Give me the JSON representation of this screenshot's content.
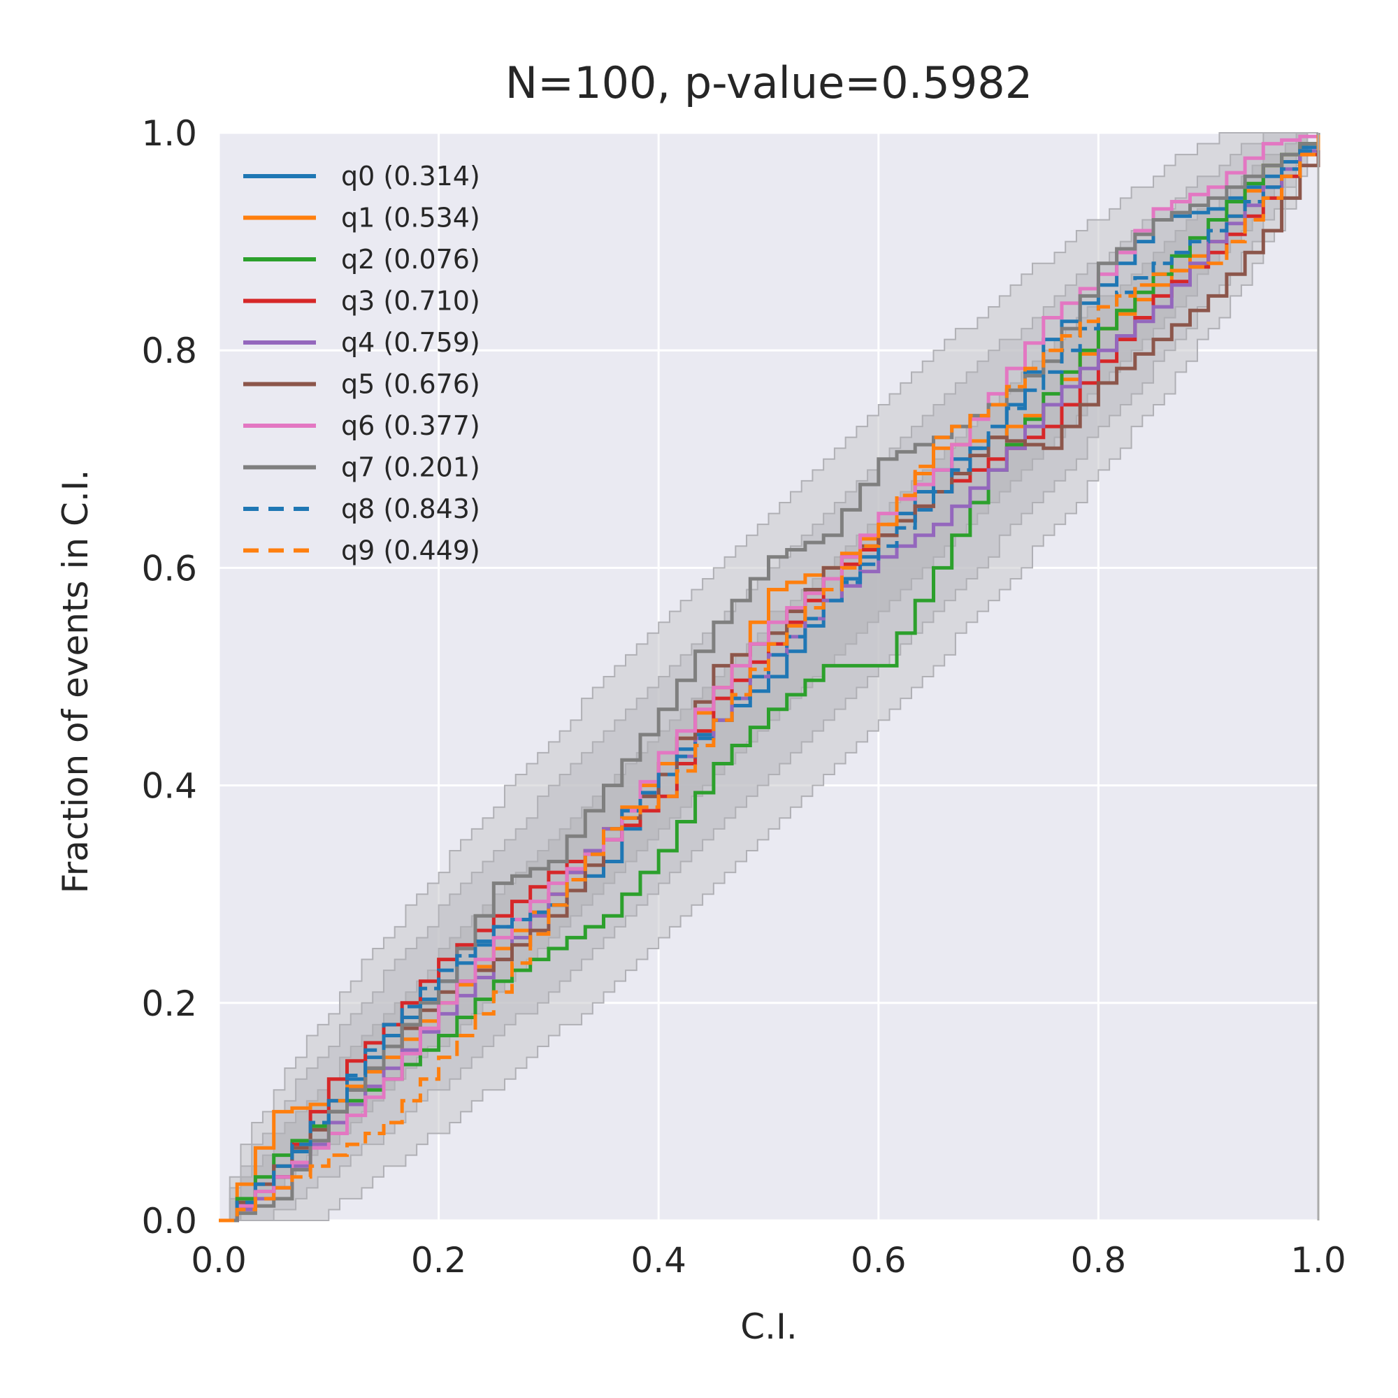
{
  "chart_data": {
    "type": "line",
    "title": "N=100, p-value=0.5982",
    "xlabel": "C.I.",
    "ylabel": "Fraction of events in C.I.",
    "xlim": [
      0,
      1
    ],
    "ylim": [
      0,
      1
    ],
    "xticks": [
      "0.0",
      "0.2",
      "0.4",
      "0.6",
      "0.8",
      "1.0"
    ],
    "yticks": [
      "0.0",
      "0.2",
      "0.4",
      "0.6",
      "0.8",
      "1.0"
    ],
    "grid": true,
    "legend_position": "upper-left",
    "background_color": "#eaeaf2",
    "confidence_bands": [
      {
        "sigma": 3,
        "color": "#c8c8cc"
      },
      {
        "sigma": 2,
        "color": "#bebec3"
      },
      {
        "sigma": 1,
        "color": "#b3b3b8"
      }
    ],
    "series": [
      {
        "name": "q0 (0.314)",
        "color": "#1f77b4",
        "style": "solid",
        "points": [
          [
            0,
            0
          ],
          [
            0.05,
            0.04
          ],
          [
            0.1,
            0.11
          ],
          [
            0.15,
            0.17
          ],
          [
            0.2,
            0.22
          ],
          [
            0.25,
            0.27
          ],
          [
            0.3,
            0.29
          ],
          [
            0.35,
            0.33
          ],
          [
            0.4,
            0.42
          ],
          [
            0.45,
            0.46
          ],
          [
            0.5,
            0.5
          ],
          [
            0.55,
            0.57
          ],
          [
            0.6,
            0.63
          ],
          [
            0.65,
            0.69
          ],
          [
            0.7,
            0.72
          ],
          [
            0.75,
            0.81
          ],
          [
            0.8,
            0.86
          ],
          [
            0.85,
            0.92
          ],
          [
            0.9,
            0.93
          ],
          [
            0.95,
            0.96
          ],
          [
            1,
            1
          ]
        ]
      },
      {
        "name": "q1 (0.534)",
        "color": "#ff7f0e",
        "style": "solid",
        "points": [
          [
            0,
            0
          ],
          [
            0.05,
            0.1
          ],
          [
            0.1,
            0.11
          ],
          [
            0.15,
            0.15
          ],
          [
            0.2,
            0.2
          ],
          [
            0.25,
            0.25
          ],
          [
            0.3,
            0.3
          ],
          [
            0.35,
            0.36
          ],
          [
            0.4,
            0.42
          ],
          [
            0.45,
            0.49
          ],
          [
            0.5,
            0.58
          ],
          [
            0.55,
            0.6
          ],
          [
            0.6,
            0.64
          ],
          [
            0.65,
            0.71
          ],
          [
            0.7,
            0.72
          ],
          [
            0.75,
            0.75
          ],
          [
            0.8,
            0.82
          ],
          [
            0.85,
            0.86
          ],
          [
            0.9,
            0.9
          ],
          [
            0.95,
            0.97
          ],
          [
            1,
            1
          ]
        ]
      },
      {
        "name": "q2 (0.076)",
        "color": "#2ca02c",
        "style": "solid",
        "points": [
          [
            0,
            0
          ],
          [
            0.05,
            0.06
          ],
          [
            0.1,
            0.1
          ],
          [
            0.15,
            0.13
          ],
          [
            0.2,
            0.17
          ],
          [
            0.25,
            0.22
          ],
          [
            0.3,
            0.25
          ],
          [
            0.35,
            0.28
          ],
          [
            0.4,
            0.34
          ],
          [
            0.45,
            0.42
          ],
          [
            0.5,
            0.47
          ],
          [
            0.55,
            0.51
          ],
          [
            0.6,
            0.51
          ],
          [
            0.65,
            0.6
          ],
          [
            0.7,
            0.69
          ],
          [
            0.75,
            0.76
          ],
          [
            0.8,
            0.82
          ],
          [
            0.85,
            0.87
          ],
          [
            0.9,
            0.92
          ],
          [
            0.95,
            0.97
          ],
          [
            1,
            1
          ]
        ]
      },
      {
        "name": "q3 (0.710)",
        "color": "#d62728",
        "style": "solid",
        "points": [
          [
            0,
            0
          ],
          [
            0.05,
            0.04
          ],
          [
            0.1,
            0.13
          ],
          [
            0.15,
            0.18
          ],
          [
            0.2,
            0.24
          ],
          [
            0.25,
            0.28
          ],
          [
            0.3,
            0.32
          ],
          [
            0.35,
            0.35
          ],
          [
            0.4,
            0.39
          ],
          [
            0.45,
            0.48
          ],
          [
            0.5,
            0.53
          ],
          [
            0.55,
            0.59
          ],
          [
            0.6,
            0.63
          ],
          [
            0.65,
            0.67
          ],
          [
            0.7,
            0.7
          ],
          [
            0.75,
            0.73
          ],
          [
            0.8,
            0.79
          ],
          [
            0.85,
            0.85
          ],
          [
            0.9,
            0.89
          ],
          [
            0.95,
            0.94
          ],
          [
            1,
            1
          ]
        ]
      },
      {
        "name": "q4 (0.759)",
        "color": "#9467bd",
        "style": "solid",
        "points": [
          [
            0,
            0
          ],
          [
            0.05,
            0.03
          ],
          [
            0.1,
            0.09
          ],
          [
            0.15,
            0.14
          ],
          [
            0.2,
            0.19
          ],
          [
            0.25,
            0.24
          ],
          [
            0.3,
            0.3
          ],
          [
            0.35,
            0.36
          ],
          [
            0.4,
            0.41
          ],
          [
            0.45,
            0.46
          ],
          [
            0.5,
            0.52
          ],
          [
            0.55,
            0.57
          ],
          [
            0.6,
            0.61
          ],
          [
            0.65,
            0.64
          ],
          [
            0.7,
            0.69
          ],
          [
            0.75,
            0.75
          ],
          [
            0.8,
            0.8
          ],
          [
            0.85,
            0.84
          ],
          [
            0.9,
            0.9
          ],
          [
            0.95,
            0.95
          ],
          [
            1,
            1
          ]
        ]
      },
      {
        "name": "q5 (0.676)",
        "color": "#8c564b",
        "style": "solid",
        "points": [
          [
            0,
            0
          ],
          [
            0.05,
            0.05
          ],
          [
            0.1,
            0.1
          ],
          [
            0.15,
            0.16
          ],
          [
            0.2,
            0.21
          ],
          [
            0.25,
            0.24
          ],
          [
            0.3,
            0.28
          ],
          [
            0.35,
            0.35
          ],
          [
            0.4,
            0.41
          ],
          [
            0.45,
            0.51
          ],
          [
            0.5,
            0.54
          ],
          [
            0.55,
            0.6
          ],
          [
            0.6,
            0.63
          ],
          [
            0.65,
            0.67
          ],
          [
            0.7,
            0.72
          ],
          [
            0.75,
            0.71
          ],
          [
            0.8,
            0.77
          ],
          [
            0.85,
            0.81
          ],
          [
            0.9,
            0.85
          ],
          [
            0.95,
            0.91
          ],
          [
            1,
            1
          ]
        ]
      },
      {
        "name": "q6 (0.377)",
        "color": "#e377c2",
        "style": "solid",
        "points": [
          [
            0,
            0
          ],
          [
            0.05,
            0.04
          ],
          [
            0.1,
            0.08
          ],
          [
            0.15,
            0.13
          ],
          [
            0.2,
            0.2
          ],
          [
            0.25,
            0.26
          ],
          [
            0.3,
            0.31
          ],
          [
            0.35,
            0.35
          ],
          [
            0.4,
            0.43
          ],
          [
            0.45,
            0.49
          ],
          [
            0.5,
            0.55
          ],
          [
            0.55,
            0.59
          ],
          [
            0.6,
            0.65
          ],
          [
            0.65,
            0.69
          ],
          [
            0.7,
            0.76
          ],
          [
            0.75,
            0.83
          ],
          [
            0.8,
            0.87
          ],
          [
            0.85,
            0.93
          ],
          [
            0.9,
            0.95
          ],
          [
            0.95,
            0.99
          ],
          [
            1,
            1
          ]
        ]
      },
      {
        "name": "q7 (0.201)",
        "color": "#7f7f7f",
        "style": "solid",
        "points": [
          [
            0,
            0
          ],
          [
            0.05,
            0.02
          ],
          [
            0.1,
            0.1
          ],
          [
            0.15,
            0.16
          ],
          [
            0.2,
            0.22
          ],
          [
            0.25,
            0.31
          ],
          [
            0.3,
            0.33
          ],
          [
            0.35,
            0.4
          ],
          [
            0.4,
            0.47
          ],
          [
            0.45,
            0.55
          ],
          [
            0.5,
            0.61
          ],
          [
            0.55,
            0.63
          ],
          [
            0.6,
            0.7
          ],
          [
            0.65,
            0.72
          ],
          [
            0.7,
            0.75
          ],
          [
            0.75,
            0.79
          ],
          [
            0.8,
            0.88
          ],
          [
            0.85,
            0.92
          ],
          [
            0.9,
            0.94
          ],
          [
            0.95,
            0.97
          ],
          [
            1,
            1
          ]
        ]
      },
      {
        "name": "q8 (0.843)",
        "color": "#1f77b4",
        "style": "dashed",
        "points": [
          [
            0,
            0
          ],
          [
            0.05,
            0.05
          ],
          [
            0.1,
            0.11
          ],
          [
            0.15,
            0.18
          ],
          [
            0.2,
            0.23
          ],
          [
            0.25,
            0.27
          ],
          [
            0.3,
            0.29
          ],
          [
            0.35,
            0.36
          ],
          [
            0.4,
            0.41
          ],
          [
            0.45,
            0.46
          ],
          [
            0.5,
            0.52
          ],
          [
            0.55,
            0.57
          ],
          [
            0.6,
            0.62
          ],
          [
            0.65,
            0.67
          ],
          [
            0.7,
            0.73
          ],
          [
            0.75,
            0.78
          ],
          [
            0.8,
            0.84
          ],
          [
            0.85,
            0.88
          ],
          [
            0.9,
            0.91
          ],
          [
            0.95,
            0.95
          ],
          [
            1,
            1
          ]
        ]
      },
      {
        "name": "q9 (0.449)",
        "color": "#ff7f0e",
        "style": "dashed",
        "points": [
          [
            0,
            0
          ],
          [
            0.05,
            0.03
          ],
          [
            0.1,
            0.06
          ],
          [
            0.15,
            0.09
          ],
          [
            0.2,
            0.15
          ],
          [
            0.25,
            0.21
          ],
          [
            0.3,
            0.29
          ],
          [
            0.35,
            0.36
          ],
          [
            0.4,
            0.39
          ],
          [
            0.45,
            0.46
          ],
          [
            0.5,
            0.53
          ],
          [
            0.55,
            0.58
          ],
          [
            0.6,
            0.64
          ],
          [
            0.65,
            0.72
          ],
          [
            0.7,
            0.75
          ],
          [
            0.75,
            0.8
          ],
          [
            0.8,
            0.84
          ],
          [
            0.85,
            0.87
          ],
          [
            0.9,
            0.88
          ],
          [
            0.95,
            0.94
          ],
          [
            1,
            1
          ]
        ]
      }
    ]
  }
}
